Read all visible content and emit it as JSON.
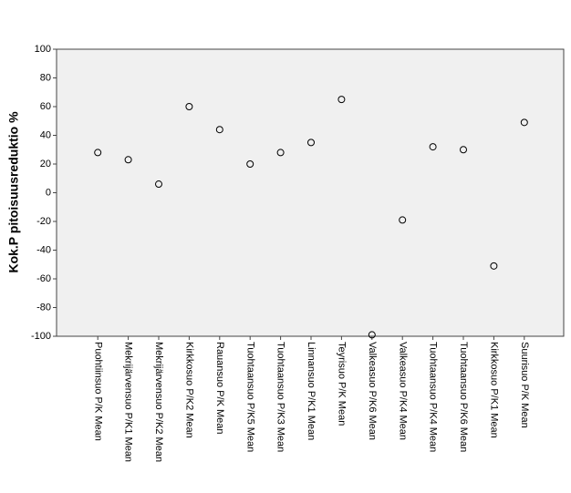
{
  "chart_data": {
    "type": "scatter",
    "y_label": "Kok.P pitoisuusreduktio %",
    "categories": [
      "Puohtiinsuo P/K Mean",
      "Mekrijärvensuo P/K1 Mean",
      "Mekrijärvensuo P/K2 Mean",
      "Kirkkosuo P/K2 Mean",
      "Rauansuo P/K Mean",
      "Tuohtaansuo P/K5 Mean",
      "Tuohtaansuo P/K3 Mean",
      "Linnansuo P/K1 Mean",
      "Teyrisuo P/K Mean",
      "Valkeasuo P/K6 Mean",
      "Valkeasuo P/K4 Mean",
      "Tuohtaansuo P/K4 Mean",
      "Tuohtaansuo P/K6 Mean",
      "Kirkkosuo P/K1 Mean",
      "Suurisuo P/K Mean"
    ],
    "values": [
      28,
      23,
      6,
      60,
      44,
      20,
      28,
      35,
      65,
      -99,
      -19,
      32,
      30,
      -51,
      49
    ],
    "color": "#000000",
    "ylim": [
      -100,
      100
    ],
    "yticks": [
      -100,
      -80,
      -60,
      -40,
      -20,
      0,
      20,
      40,
      60,
      80,
      100
    ],
    "grid": false
  }
}
